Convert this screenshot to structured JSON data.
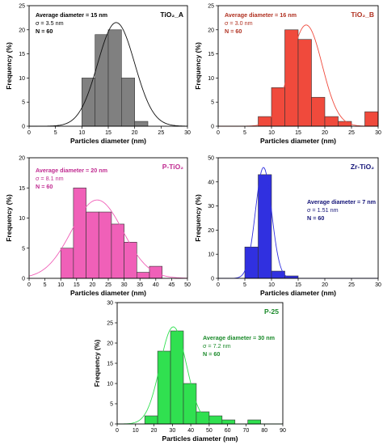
{
  "chart_data": [
    {
      "type": "bar",
      "panel_label": "TiO₂_A",
      "stats": {
        "avg": "Average diameter = 15 nm",
        "sigma": "σ = 3.5 nm",
        "n": "N = 60"
      },
      "bar_color": "#808080",
      "text_color": "#000000",
      "bin_edges": [
        10,
        12.5,
        15,
        17.5,
        20,
        22.5,
        25
      ],
      "values": [
        10,
        19,
        20,
        10,
        1,
        0
      ],
      "fit": {
        "mean": 16.5,
        "sigma": 3.5,
        "peak": 21.5
      },
      "xlabel": "Particles diameter (nm)",
      "ylabel": "Frequency (%)",
      "xlim": [
        0,
        30
      ],
      "ylim": [
        0,
        25
      ],
      "xticks": [
        0,
        5,
        10,
        15,
        20,
        25,
        30
      ],
      "yticks": [
        0,
        5,
        10,
        15,
        20,
        25
      ],
      "stats_position": "top-left"
    },
    {
      "type": "bar",
      "panel_label": "TiO₂_B",
      "stats": {
        "avg": "Average diameter = 16 nm",
        "sigma": "σ = 3.0 nm",
        "n": "N = 60"
      },
      "bar_color": "#f04a3c",
      "text_color": "#b03020",
      "bin_edges": [
        7.5,
        10,
        12.5,
        15,
        17.5,
        20,
        22.5,
        25,
        27.5,
        30
      ],
      "values": [
        2,
        8,
        20,
        18,
        6,
        2,
        1,
        0,
        3
      ],
      "fit": {
        "mean": 16.5,
        "sigma": 3.0,
        "peak": 21
      },
      "xlabel": "Particles diameter (nm)",
      "ylabel": "Frequency (%)",
      "xlim": [
        0,
        30
      ],
      "ylim": [
        0,
        25
      ],
      "xticks": [
        0,
        5,
        10,
        15,
        20,
        25,
        30
      ],
      "yticks": [
        0,
        5,
        10,
        15,
        20,
        25
      ],
      "stats_position": "top-left"
    },
    {
      "type": "bar",
      "panel_label": "P-TiO₂",
      "stats": {
        "avg": "Average diameter = 20 nm",
        "sigma": "σ = 8.1 nm",
        "n": "N = 60"
      },
      "bar_color": "#f060b8",
      "text_color": "#c02a90",
      "bin_edges": [
        10,
        14,
        18,
        22,
        26,
        30,
        34,
        38,
        42
      ],
      "values": [
        5,
        15,
        11,
        11,
        9,
        6,
        1,
        2
      ],
      "fit": {
        "mean": 21.5,
        "sigma": 8.1,
        "peak": 13
      },
      "xlabel": "Particles diameter (nm)",
      "ylabel": "Frequency (%)",
      "xlim": [
        0,
        50
      ],
      "ylim": [
        0,
        20
      ],
      "xticks": [
        0,
        5,
        10,
        15,
        20,
        25,
        30,
        35,
        40,
        45,
        50
      ],
      "yticks": [
        0,
        5,
        10,
        15,
        20
      ],
      "stats_position": "top-left"
    },
    {
      "type": "bar",
      "panel_label": "Zr-TiO₂",
      "stats": {
        "avg": "Average diameter = 7 nm",
        "sigma": "σ = 1.51 nm",
        "n": "N = 60"
      },
      "bar_color": "#3030e0",
      "text_color": "#141478",
      "bin_edges": [
        5,
        7.5,
        10,
        12.5,
        15
      ],
      "values": [
        13,
        43,
        3,
        1
      ],
      "fit": {
        "mean": 8.5,
        "sigma": 1.51,
        "peak": 46
      },
      "xlabel": "Particles diameter (nm)",
      "ylabel": "Frequency (%)",
      "xlim": [
        0,
        30
      ],
      "ylim": [
        0,
        50
      ],
      "xticks": [
        0,
        5,
        10,
        15,
        20,
        25,
        30
      ],
      "yticks": [
        0,
        10,
        20,
        30,
        40,
        50
      ],
      "stats_position": "right"
    },
    {
      "type": "bar",
      "panel_label": "P-25",
      "stats": {
        "avg": "Average diameter = 30 nm",
        "sigma": "σ = 7.2 nm",
        "n": "N = 60"
      },
      "bar_color": "#30e050",
      "text_color": "#1a8a2a",
      "bin_edges": [
        15,
        22,
        29,
        36,
        43,
        50,
        57,
        64,
        71,
        78,
        85
      ],
      "values": [
        2,
        18,
        23,
        10,
        3,
        2,
        1,
        0,
        1,
        0
      ],
      "fit": {
        "mean": 30.5,
        "sigma": 7.2,
        "peak": 24
      },
      "xlabel": "Particles diameter (nm)",
      "ylabel": "Frequency (%)",
      "xlim": [
        0,
        90
      ],
      "ylim": [
        0,
        30
      ],
      "xticks": [
        0,
        10,
        20,
        30,
        40,
        50,
        60,
        70,
        80,
        90
      ],
      "yticks": [
        0,
        5,
        10,
        15,
        20,
        25,
        30
      ],
      "stats_position": "right"
    }
  ]
}
